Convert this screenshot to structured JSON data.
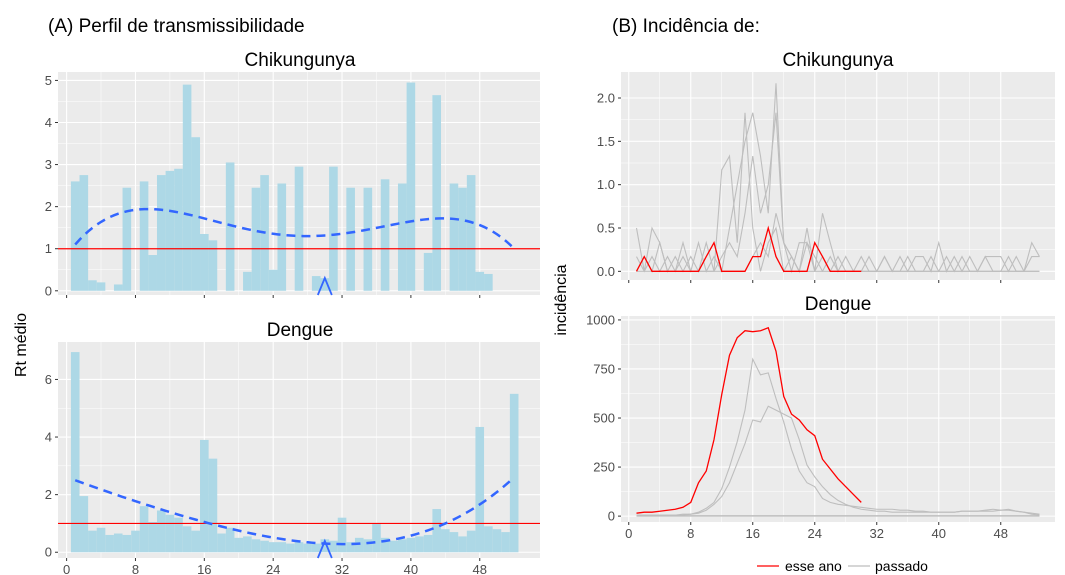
{
  "panel_a": {
    "header": "(A) Perfil de transmissibilidade",
    "ylabel": "Rt médio"
  },
  "panel_b": {
    "header": "(B) Incidência de:",
    "ylabel": "incidência"
  },
  "legend": {
    "items": [
      {
        "label": "esse ano",
        "color": "#ff0000"
      },
      {
        "label": "passado",
        "color": "#bebebe"
      }
    ]
  },
  "colors": {
    "bar": "#add8e6",
    "smooth": "#3366ff",
    "threshold": "#ff0000",
    "marker": "#3366ff",
    "current_year": "#ff0000",
    "past_years": "#bebebe",
    "panel_bg": "#ebebeb",
    "grid": "#ffffff"
  },
  "chart_data": [
    {
      "type": "bar",
      "title": "Chikungunya",
      "x": [
        1,
        2,
        3,
        4,
        5,
        6,
        7,
        8,
        9,
        10,
        11,
        12,
        13,
        14,
        15,
        16,
        17,
        18,
        19,
        20,
        21,
        22,
        23,
        24,
        25,
        26,
        27,
        28,
        29,
        30,
        31,
        32,
        33,
        34,
        35,
        36,
        37,
        38,
        39,
        40,
        41,
        42,
        43,
        44,
        45,
        46,
        47,
        48,
        49,
        50,
        51,
        52,
        53
      ],
      "values": [
        2.6,
        2.75,
        0.25,
        0.2,
        0,
        0.15,
        2.45,
        0,
        2.6,
        0.85,
        2.75,
        2.85,
        2.9,
        4.9,
        3.65,
        1.35,
        1.2,
        0,
        3.05,
        0,
        0.45,
        2.45,
        2.75,
        0.5,
        2.55,
        0,
        2.95,
        0,
        0.35,
        0.3,
        2.95,
        0,
        2.45,
        0,
        2.45,
        0,
        2.65,
        0,
        2.55,
        4.95,
        0,
        0.9,
        4.65,
        0,
        2.55,
        2.45,
        2.75,
        0.45,
        0.4,
        0,
        0,
        0,
        0
      ],
      "smooth_y_at_x": {
        "1": 1.1,
        "14": 1.82,
        "28": 1.3,
        "40": 1.65,
        "52": 1.0
      },
      "threshold": 1,
      "marker_week": 30,
      "xlim": [
        -1,
        55
      ],
      "ylim": [
        -0.1,
        5.2
      ],
      "yticks": [
        0,
        1,
        2,
        3,
        4,
        5
      ],
      "xticks": [
        0,
        8,
        16,
        24,
        32,
        40,
        48
      ],
      "show_x_tick_labels": false
    },
    {
      "type": "bar",
      "title": "Dengue",
      "x": [
        1,
        2,
        3,
        4,
        5,
        6,
        7,
        8,
        9,
        10,
        11,
        12,
        13,
        14,
        15,
        16,
        17,
        18,
        19,
        20,
        21,
        22,
        23,
        24,
        25,
        26,
        27,
        28,
        29,
        30,
        31,
        32,
        33,
        34,
        35,
        36,
        37,
        38,
        39,
        40,
        41,
        42,
        43,
        44,
        45,
        46,
        47,
        48,
        49,
        50,
        51,
        52,
        53
      ],
      "values": [
        6.95,
        1.95,
        0.75,
        0.85,
        0.6,
        0.65,
        0.6,
        0.75,
        1.6,
        1.05,
        1.45,
        1.3,
        1.2,
        0.9,
        0.75,
        3.9,
        3.25,
        0.65,
        0.85,
        0.5,
        0.55,
        0.45,
        0.4,
        0.35,
        0.35,
        0.3,
        0.35,
        0.3,
        0.3,
        0.45,
        0.4,
        1.2,
        0.35,
        0.5,
        0.45,
        1.0,
        0.5,
        0.4,
        0.45,
        0.5,
        0.55,
        0.6,
        1.5,
        0.8,
        0.7,
        0.55,
        0.75,
        4.35,
        0.9,
        0.8,
        0.7,
        5.5,
        0
      ],
      "smooth_y_at_x": {
        "1": 2.5,
        "16": 1.05,
        "30": 0.3,
        "44": 1.0,
        "52": 2.6
      },
      "threshold": 1,
      "marker_week": 30,
      "xlim": [
        -1,
        55
      ],
      "ylim": [
        -0.2,
        7.3
      ],
      "yticks": [
        0,
        2,
        4,
        6
      ],
      "xticks": [
        0,
        8,
        16,
        24,
        32,
        40,
        48
      ],
      "show_x_tick_labels": true
    },
    {
      "type": "line",
      "title": "Chikungunya",
      "xlim": [
        -1,
        55
      ],
      "ylim": [
        -0.1,
        2.3
      ],
      "yticks": [
        0.0,
        0.5,
        1.0,
        1.5,
        2.0
      ],
      "ytick_labels": [
        "0.0",
        "0.5",
        "1.0",
        "1.5",
        "2.0"
      ],
      "xticks": [
        0,
        8,
        16,
        24,
        32,
        40,
        48
      ],
      "show_x_tick_labels": false,
      "series": [
        {
          "name": "esse ano",
          "x": [
            1,
            2,
            3,
            4,
            5,
            6,
            7,
            8,
            9,
            10,
            11,
            12,
            13,
            14,
            15,
            16,
            17,
            18,
            19,
            20,
            21,
            22,
            23,
            24,
            25,
            26,
            27,
            28,
            29,
            30
          ],
          "values": [
            0,
            0.17,
            0,
            0,
            0,
            0,
            0,
            0,
            0,
            0.17,
            0.33,
            0,
            0,
            0,
            0,
            0.17,
            0.17,
            0.5,
            0.17,
            0,
            0,
            0,
            0,
            0.33,
            0.17,
            0,
            0,
            0,
            0,
            0
          ]
        },
        {
          "x": [
            1,
            2,
            3,
            4,
            5,
            6,
            7,
            8,
            9,
            10,
            11,
            12,
            13,
            14,
            15,
            16,
            17,
            18,
            19,
            20,
            21,
            22,
            23,
            24,
            25,
            26,
            27,
            28,
            29,
            30,
            31,
            32,
            33,
            34,
            35,
            36,
            37,
            38,
            39,
            40,
            41,
            42,
            43,
            44,
            45,
            46,
            47,
            48,
            49,
            50,
            51,
            52,
            53
          ],
          "values": [
            0.5,
            0,
            0.5,
            0.33,
            0,
            0.17,
            0,
            0.17,
            0,
            0.33,
            0,
            1.17,
            1.33,
            0.33,
            1.83,
            0.5,
            0,
            0.33,
            0.5,
            0,
            0.17,
            0,
            0.33,
            0,
            0,
            0.17,
            0,
            0,
            0,
            0.17,
            0,
            0,
            0.17,
            0,
            0,
            0.17,
            0,
            0,
            0.17,
            0,
            0.17,
            0,
            0.17,
            0,
            0,
            0.17,
            0,
            0,
            0.17,
            0,
            0,
            0.17,
            0.17
          ]
        },
        {
          "x": [
            1,
            2,
            3,
            4,
            5,
            6,
            7,
            8,
            9,
            10,
            11,
            12,
            13,
            14,
            15,
            16,
            17,
            18,
            19,
            20,
            21,
            22,
            23,
            24,
            25,
            26,
            27,
            28,
            29,
            30,
            31,
            32,
            33,
            34,
            35,
            36,
            37,
            38,
            39,
            40,
            41,
            42,
            43,
            44,
            45,
            46,
            47,
            48,
            49,
            50,
            51,
            52,
            53
          ],
          "values": [
            0.17,
            0,
            0.17,
            0,
            0.17,
            0,
            0.17,
            0,
            0.33,
            0,
            0.17,
            0,
            0.5,
            1.0,
            1.5,
            1.83,
            1.33,
            0.67,
            2.17,
            0.33,
            0.17,
            0,
            0.5,
            0,
            0.67,
            0.33,
            0,
            0.17,
            0,
            0,
            0.17,
            0,
            0.17,
            0,
            0.17,
            0,
            0.17,
            0.17,
            0,
            0.33,
            0,
            0.17,
            0,
            0.17,
            0,
            0.17,
            0.17,
            0.17,
            0,
            0.17,
            0,
            0,
            0
          ]
        },
        {
          "x": [
            1,
            2,
            3,
            4,
            5,
            6,
            7,
            8,
            9,
            10,
            11,
            12,
            13,
            14,
            15,
            16,
            17,
            18,
            19,
            20,
            21,
            22,
            23,
            24,
            25,
            26,
            27,
            28,
            29,
            30,
            31,
            32,
            33,
            34,
            35,
            36,
            37,
            38,
            39,
            40,
            41,
            42,
            43,
            44,
            45,
            46,
            47,
            48,
            49,
            50,
            51,
            52,
            53
          ],
          "values": [
            0,
            0.17,
            0,
            0.33,
            0,
            0,
            0.33,
            0,
            0,
            0,
            0,
            0.17,
            0.33,
            0.17,
            0.67,
            1.33,
            0.67,
            1.0,
            1.83,
            0.33,
            0,
            0.33,
            0.33,
            0.17,
            0,
            0,
            0.17,
            0,
            0,
            0,
            0,
            0,
            0,
            0,
            0,
            0,
            0,
            0,
            0,
            0,
            0,
            0,
            0,
            0,
            0,
            0,
            0,
            0,
            0,
            0,
            0,
            0.33,
            0.17
          ]
        },
        {
          "x": [
            1,
            2,
            3,
            4,
            5,
            6,
            7,
            8,
            9,
            10,
            11,
            12,
            13,
            14,
            15,
            16,
            17,
            18,
            19,
            20,
            21,
            22,
            23,
            24,
            25,
            26,
            27,
            28,
            29,
            30,
            31,
            32,
            33,
            34,
            35,
            36,
            37,
            38,
            39,
            40,
            41,
            42,
            43,
            44,
            45,
            46,
            47,
            48,
            49,
            50,
            51,
            52,
            53
          ],
          "values": [
            0,
            0,
            0,
            0,
            0,
            0,
            0,
            0,
            0,
            0,
            0,
            0,
            0,
            0,
            0,
            0.17,
            0.33,
            0.17,
            0.67,
            0.33,
            0.17,
            0,
            0,
            0,
            0.17,
            0,
            0,
            0,
            0,
            0,
            0,
            0,
            0,
            0,
            0,
            0,
            0,
            0,
            0,
            0,
            0,
            0,
            0,
            0,
            0,
            0,
            0,
            0,
            0,
            0,
            0,
            0,
            0
          ]
        }
      ]
    },
    {
      "type": "line",
      "title": "Dengue",
      "xlim": [
        -1,
        55
      ],
      "ylim": [
        -30,
        1020
      ],
      "yticks": [
        0,
        250,
        500,
        750,
        1000
      ],
      "xticks": [
        0,
        8,
        16,
        24,
        32,
        40,
        48
      ],
      "show_x_tick_labels": true,
      "series": [
        {
          "name": "esse ano",
          "x": [
            1,
            2,
            3,
            4,
            5,
            6,
            7,
            8,
            9,
            10,
            11,
            12,
            13,
            14,
            15,
            16,
            17,
            18,
            19,
            20,
            21,
            22,
            23,
            24,
            25,
            26,
            27,
            28,
            29,
            30
          ],
          "values": [
            15,
            20,
            20,
            25,
            30,
            35,
            45,
            70,
            170,
            230,
            390,
            620,
            820,
            910,
            945,
            940,
            945,
            960,
            840,
            610,
            520,
            490,
            440,
            410,
            290,
            240,
            190,
            150,
            110,
            70
          ]
        },
        {
          "x": [
            1,
            2,
            3,
            4,
            5,
            6,
            7,
            8,
            9,
            10,
            11,
            12,
            13,
            14,
            15,
            16,
            17,
            18,
            19,
            20,
            21,
            22,
            23,
            24,
            25,
            26,
            27,
            28,
            29,
            30,
            31,
            32,
            33,
            34,
            35,
            36,
            37,
            38,
            39,
            40,
            41,
            42,
            43,
            44,
            45,
            46,
            47,
            48,
            49,
            50,
            51,
            52,
            53
          ],
          "values": [
            5,
            5,
            5,
            5,
            5,
            5,
            10,
            10,
            20,
            40,
            70,
            140,
            250,
            380,
            540,
            800,
            720,
            730,
            600,
            480,
            340,
            230,
            170,
            150,
            90,
            70,
            60,
            55,
            50,
            45,
            40,
            35,
            35,
            35,
            30,
            30,
            25,
            25,
            20,
            20,
            20,
            20,
            25,
            25,
            25,
            30,
            35,
            30,
            30,
            25,
            20,
            15,
            10
          ]
        },
        {
          "x": [
            1,
            2,
            3,
            4,
            5,
            6,
            7,
            8,
            9,
            10,
            11,
            12,
            13,
            14,
            15,
            16,
            17,
            18,
            19,
            20,
            21,
            22,
            23,
            24,
            25,
            26,
            27,
            28,
            29,
            30,
            31,
            32,
            33,
            34,
            35,
            36,
            37,
            38,
            39,
            40,
            41,
            42,
            43,
            44,
            45,
            46,
            47,
            48,
            49,
            50,
            51,
            52,
            53
          ],
          "values": [
            5,
            5,
            5,
            5,
            5,
            5,
            5,
            10,
            15,
            30,
            60,
            100,
            170,
            270,
            370,
            490,
            480,
            560,
            540,
            520,
            500,
            390,
            260,
            200,
            150,
            110,
            80,
            60,
            45,
            35,
            30,
            25,
            25,
            20,
            20,
            20,
            20,
            20,
            20,
            20,
            20,
            20,
            25,
            25,
            25,
            25,
            25,
            30,
            35,
            25,
            20,
            10,
            5
          ]
        },
        {
          "x": [
            1,
            53
          ],
          "values": [
            0,
            0
          ]
        },
        {
          "x": [
            1,
            53
          ],
          "values": [
            2,
            2
          ]
        }
      ]
    }
  ]
}
